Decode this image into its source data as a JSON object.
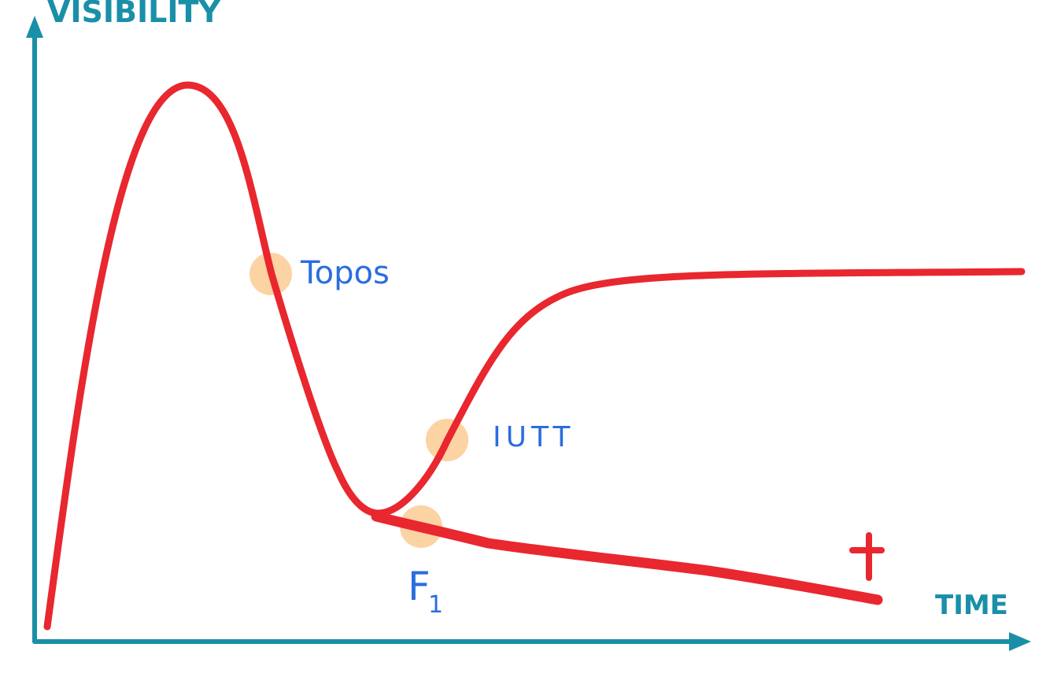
{
  "axes": {
    "y_label": "VISIBILITY",
    "x_label": "TIME"
  },
  "annotations": {
    "topos": "Topos",
    "iutt": "IUTT",
    "f1_letter": "F",
    "f1_subscript": "1"
  },
  "colors": {
    "axis": "#1a8fa8",
    "curve": "#e8272f",
    "marker": "#fcd3a3",
    "annotation": "#2a6de0"
  },
  "icons": {
    "end_marker": "cross-icon"
  }
}
